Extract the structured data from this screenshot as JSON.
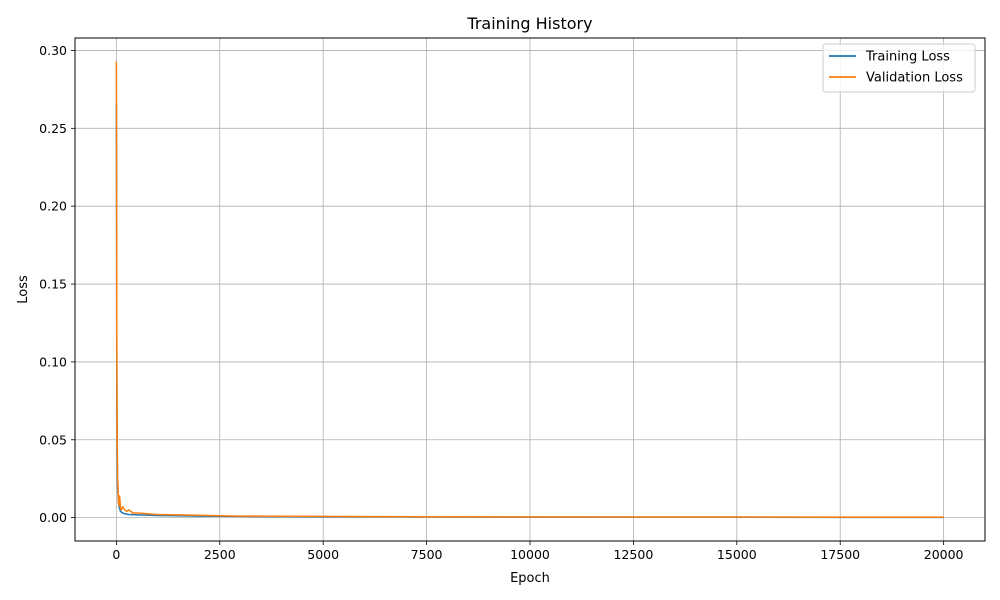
{
  "chart_data": {
    "type": "line",
    "title": "Training History",
    "xlabel": "Epoch",
    "ylabel": "Loss",
    "xlim": [
      -1000,
      21000
    ],
    "ylim": [
      -0.015,
      0.308
    ],
    "xticks": [
      0,
      2500,
      5000,
      7500,
      10000,
      12500,
      15000,
      17500,
      20000
    ],
    "xtick_labels": [
      "0",
      "2500",
      "5000",
      "7500",
      "10000",
      "12500",
      "15000",
      "17500",
      "20000"
    ],
    "yticks": [
      0.0,
      0.05,
      0.1,
      0.15,
      0.2,
      0.25,
      0.3
    ],
    "ytick_labels": [
      "0.00",
      "0.05",
      "0.10",
      "0.15",
      "0.20",
      "0.25",
      "0.30"
    ],
    "grid": true,
    "legend_position": "top-right",
    "series": [
      {
        "name": "Training Loss",
        "color": "#1f77b4",
        "x": [
          0,
          5,
          10,
          20,
          30,
          50,
          75,
          100,
          150,
          200,
          300,
          500,
          750,
          1000,
          1500,
          2000,
          2500,
          3000,
          4000,
          5000,
          7500,
          10000,
          12500,
          15000,
          17500,
          20000
        ],
        "y": [
          0.266,
          0.2,
          0.1,
          0.04,
          0.02,
          0.01,
          0.006,
          0.004,
          0.003,
          0.0025,
          0.002,
          0.0018,
          0.0016,
          0.0014,
          0.0012,
          0.001,
          0.0009,
          0.0008,
          0.0007,
          0.0006,
          0.0005,
          0.0004,
          0.0003,
          0.0003,
          0.0002,
          0.0002
        ]
      },
      {
        "name": "Validation Loss",
        "color": "#ff7f0e",
        "x": [
          0,
          5,
          10,
          20,
          30,
          40,
          50,
          60,
          80,
          100,
          120,
          150,
          200,
          250,
          300,
          400,
          500,
          750,
          1000,
          1500,
          2000,
          2500,
          3000,
          4000,
          5000,
          7500,
          10000,
          12500,
          15000,
          17500,
          20000
        ],
        "y": [
          0.293,
          0.25,
          0.12,
          0.05,
          0.025,
          0.02,
          0.01,
          0.008,
          0.014,
          0.006,
          0.005,
          0.007,
          0.005,
          0.004,
          0.005,
          0.003,
          0.003,
          0.0025,
          0.002,
          0.0018,
          0.0015,
          0.0012,
          0.001,
          0.0009,
          0.0008,
          0.0006,
          0.0005,
          0.0004,
          0.0004,
          0.0003,
          0.0003
        ]
      }
    ]
  }
}
